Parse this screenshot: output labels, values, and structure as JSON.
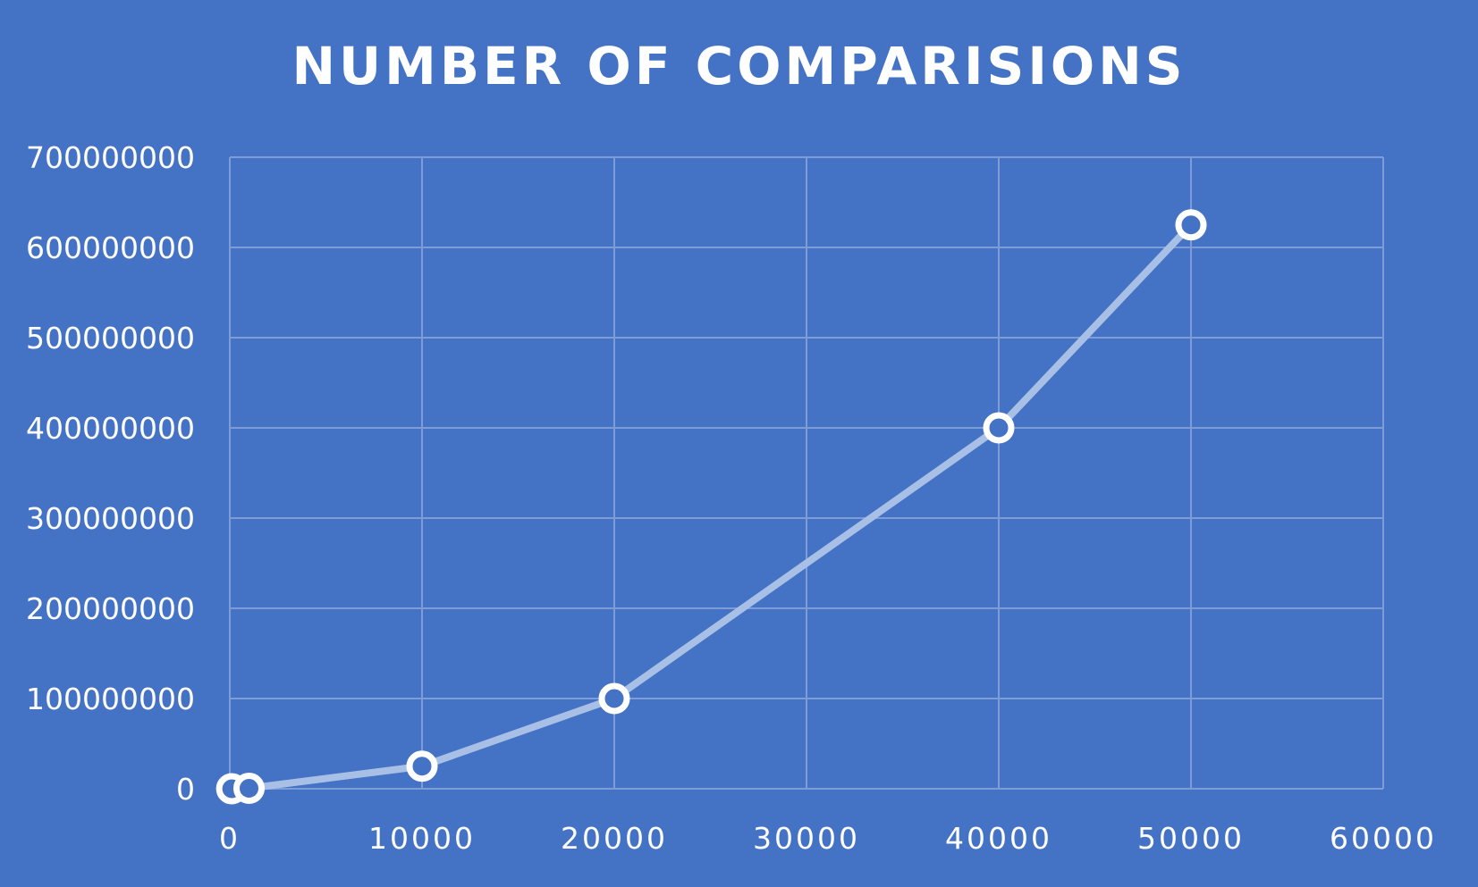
{
  "chart_data": {
    "type": "scatter",
    "title": "NUMBER OF COMPARISIONS",
    "xlabel": "",
    "ylabel": "",
    "x": [
      100,
      1000,
      10000,
      20000,
      40000,
      50000
    ],
    "y": [
      4950,
      499500,
      25000000,
      100000000,
      400000000,
      625000000
    ],
    "xlim": [
      0,
      60000
    ],
    "ylim": [
      0,
      700000000
    ],
    "x_ticks": [
      "0",
      "10000",
      "20000",
      "30000",
      "40000",
      "50000",
      "60000"
    ],
    "y_ticks": [
      "0",
      "100000000",
      "200000000",
      "300000000",
      "400000000",
      "500000000",
      "600000000",
      "700000000"
    ],
    "grid": true,
    "markers": "hollow-circle",
    "line": "straight-with-markers"
  },
  "colors": {
    "background": "#4472C4",
    "line": "#A9C0E6",
    "marker_fill": "#4472C4",
    "marker_stroke": "#FFFFFF",
    "grid": "#7E9CD6",
    "text": "#FFFFFF"
  }
}
